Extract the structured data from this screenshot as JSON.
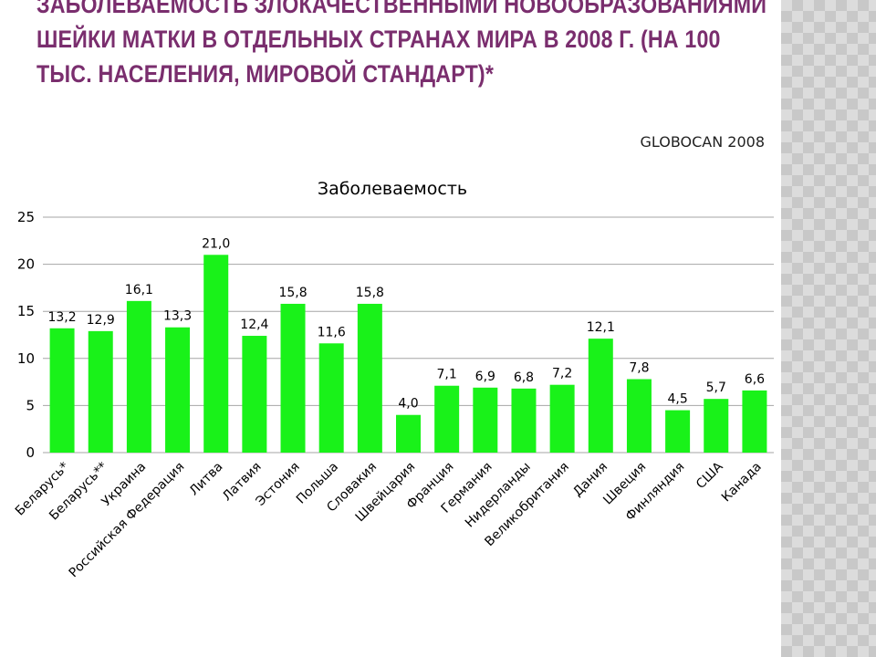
{
  "slide": {
    "title": "ЗАБОЛЕВАЕМОСТЬ ЗЛОКАЧЕСТВЕННЫМИ НОВООБРАЗОВАНИЯМИ ШЕЙКИ МАТКИ В ОТДЕЛЬНЫХ СТРАНАХ МИРА В 2008 Г. (НА 100 ТЫС. НАСЕЛЕНИЯ, МИРОВОЙ СТАНДАРТ)*",
    "source": "GLOBOCAN 2008"
  },
  "colors": {
    "title": "#7a2e6e",
    "bar": "#19f219",
    "gridline": "#a6a6a6",
    "side_pattern": "#c8c8c8"
  },
  "chart_data": {
    "type": "bar",
    "title": "Заболеваемость",
    "xlabel": "",
    "ylabel": "",
    "ylim": [
      0,
      25
    ],
    "yticks": [
      "0",
      "5",
      "10",
      "15",
      "20",
      "25"
    ],
    "grid": true,
    "categories": [
      "Беларусь*",
      "Беларусь**",
      "Украина",
      "Российская Федерация",
      "Литва",
      "Латвия",
      "Эстония",
      "Польша",
      "Словакия",
      "Швейцария",
      "Франция",
      "Германия",
      "Нидерланды",
      "Великобритания",
      "Дания",
      "Швеция",
      "Финляндия",
      "США",
      "Канада"
    ],
    "values": [
      13.2,
      12.9,
      16.1,
      13.3,
      21.0,
      12.4,
      15.8,
      11.6,
      15.8,
      4.0,
      7.1,
      6.9,
      6.8,
      7.2,
      12.1,
      7.8,
      4.5,
      5.7,
      6.6
    ],
    "value_labels": [
      "13,2",
      "12,9",
      "16,1",
      "13,3",
      "21,0",
      "12,4",
      "15,8",
      "11,6",
      "15,8",
      "4,0",
      "7,1",
      "6,9",
      "6,8",
      "7,2",
      "12,1",
      "7,8",
      "4,5",
      "5,7",
      "6,6"
    ]
  }
}
